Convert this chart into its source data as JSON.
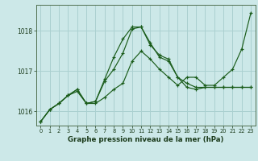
{
  "title": "Graphe pression niveau de la mer (hPa)",
  "bg_color": "#cce8e8",
  "grid_color": "#aad0d0",
  "line_color": "#1a5c1a",
  "marker": "+",
  "xlim": [
    -0.5,
    23.5
  ],
  "ylim": [
    1015.65,
    1018.65
  ],
  "xticks": [
    0,
    1,
    2,
    3,
    4,
    5,
    6,
    7,
    8,
    9,
    10,
    11,
    12,
    13,
    14,
    15,
    16,
    17,
    18,
    19,
    20,
    21,
    22,
    23
  ],
  "yticks": [
    1016,
    1017,
    1018
  ],
  "series": [
    [
      1015.75,
      1016.05,
      1016.2,
      1016.4,
      1016.5,
      1016.2,
      1016.2,
      1016.35,
      1016.55,
      1016.7,
      1017.25,
      1017.5,
      1017.3,
      1017.05,
      1016.85,
      1016.65,
      1016.85,
      1016.85,
      1016.65,
      1016.65,
      1016.85,
      1017.05,
      1017.55,
      1018.45
    ],
    [
      1015.75,
      1016.05,
      1016.2,
      1016.4,
      1016.55,
      1016.2,
      1016.25,
      1016.75,
      1017.05,
      1017.45,
      1018.05,
      1018.1,
      1017.65,
      1017.4,
      1017.3,
      1016.85,
      1016.7,
      1016.6,
      1016.6,
      1016.6,
      1016.6,
      1016.6,
      1016.6,
      1016.6
    ],
    [
      1015.75,
      1016.05,
      1016.2,
      1016.4,
      1016.55,
      1016.2,
      1016.25,
      1016.8,
      1017.35,
      1017.8,
      1018.1,
      1018.1,
      1017.7,
      1017.35,
      1017.25,
      1016.85,
      1016.6,
      1016.55,
      1016.6,
      1016.6,
      1016.6,
      1016.6,
      1016.6,
      1016.6
    ]
  ]
}
